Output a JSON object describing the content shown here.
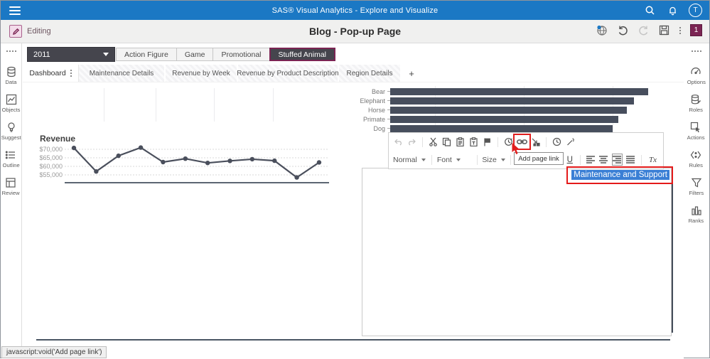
{
  "top_bar": {
    "title": "SAS® Visual Analytics - Explore and Visualize",
    "avatar_initial": "T"
  },
  "app_bar": {
    "mode_label": "Editing",
    "page_title": "Blog - Pop-up Page",
    "badge_count": "1"
  },
  "left_rail": {
    "items": [
      {
        "label": "Data",
        "icon": "database-icon"
      },
      {
        "label": "Objects",
        "icon": "chart-objects-icon"
      },
      {
        "label": "Suggest",
        "icon": "lightbulb-icon"
      },
      {
        "label": "Outline",
        "icon": "list-outline-icon"
      },
      {
        "label": "Review",
        "icon": "review-icon"
      }
    ]
  },
  "right_rail": {
    "items": [
      {
        "label": "Options",
        "icon": "gauge-icon"
      },
      {
        "label": "Roles",
        "icon": "data-roles-icon"
      },
      {
        "label": "Actions",
        "icon": "cursor-actions-icon"
      },
      {
        "label": "Rules",
        "icon": "display-rules-icon"
      },
      {
        "label": "Filters",
        "icon": "funnel-icon"
      },
      {
        "label": "Ranks",
        "icon": "ranks-bars-icon"
      }
    ]
  },
  "controls": {
    "year_value": "2011",
    "categories": [
      {
        "label": "Action Figure",
        "selected": false
      },
      {
        "label": "Game",
        "selected": false
      },
      {
        "label": "Promotional",
        "selected": false
      },
      {
        "label": "Stuffed Animal",
        "selected": true
      }
    ]
  },
  "tabs": {
    "active": "Dashboard",
    "inactive": [
      "Maintenance Details",
      "Revenue by Week",
      "Revenue by Product Description",
      "Region Details"
    ],
    "add_label": "+"
  },
  "editor": {
    "paragraph_style": "Normal",
    "font_label": "Font",
    "size_label": "Size",
    "tooltip": "Add page link",
    "italic_label": "I",
    "underline_label": "U",
    "clear_format_label": "Tx",
    "selected_text": "Maintenance and Support"
  },
  "status_bar": {
    "text": "javascript:void('Add page link')"
  },
  "colors": {
    "top_bar_blue": "#1b78c4",
    "accent_maroon": "#7b2453",
    "dark_control": "#45454d",
    "bar_fill": "#474e5d",
    "selection_blue": "#3a7fd5",
    "annotation_red": "#e01e1e"
  },
  "chart_data": [
    {
      "type": "bar",
      "orientation": "horizontal",
      "title": "",
      "categories": [
        "Bear",
        "Elephant",
        "Horse",
        "Primate",
        "Dog"
      ],
      "values": [
        363,
        343,
        333,
        321,
        313
      ],
      "value_axis_labels_visible": false,
      "xlim": [
        0,
        380
      ],
      "bar_color": "#474e5d",
      "grid": "faint-vertical"
    },
    {
      "type": "line",
      "title": "Revenue",
      "x_tick_labels_visible": false,
      "x": [
        1,
        2,
        3,
        4,
        5,
        6,
        7,
        8,
        9,
        10,
        11,
        12
      ],
      "values": [
        70800,
        57000,
        66200,
        71000,
        62500,
        64500,
        62000,
        63200,
        64200,
        63300,
        53500,
        62300
      ],
      "ylabel_ticks": [
        "$70,000",
        "$65,000",
        "$60,000",
        "$55,000"
      ],
      "ytick_values": [
        70000,
        65000,
        60000,
        55000
      ],
      "ylim": [
        51000,
        73000
      ],
      "line_color": "#4a4f5c",
      "grid": "dotted-horizontal",
      "legend": "none"
    }
  ]
}
